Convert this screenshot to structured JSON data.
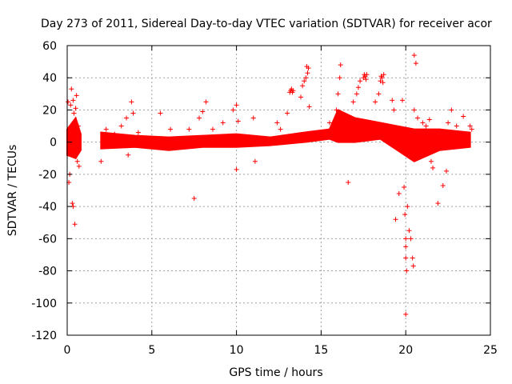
{
  "chart_data": {
    "type": "scatter",
    "title": "Day 273 of 2011, Sidereal Day-to-day VTEC variation (SDTVAR) for receiver acor",
    "xlabel": "GPS time / hours",
    "ylabel": "SDTVAR / TECUs",
    "xlim": [
      0,
      25
    ],
    "ylim": [
      -120,
      60
    ],
    "xticks": [
      0,
      5,
      10,
      15,
      20,
      25
    ],
    "yticks": [
      60,
      40,
      20,
      0,
      -20,
      -40,
      -60,
      -80,
      -100,
      -120
    ],
    "grid": true,
    "marker": "+",
    "series_color": "#ff0000",
    "series": [
      {
        "name": "SDTVAR",
        "band_description": "dense band of samples around zero",
        "band": [
          {
            "x": 0.0,
            "low": -8,
            "high": 8
          },
          {
            "x": 0.5,
            "low": -10,
            "high": 15
          },
          {
            "x": 0.8,
            "low": -5,
            "high": 5
          },
          {
            "x": 2.0,
            "low": -4,
            "high": 6
          },
          {
            "x": 4.0,
            "low": -3,
            "high": 4
          },
          {
            "x": 6.0,
            "low": -5,
            "high": 3
          },
          {
            "x": 8.0,
            "low": -3,
            "high": 4
          },
          {
            "x": 10.0,
            "low": -3,
            "high": 5
          },
          {
            "x": 12.0,
            "low": -2,
            "high": 3
          },
          {
            "x": 14.0,
            "low": 0,
            "high": 6
          },
          {
            "x": 15.5,
            "low": 2,
            "high": 8
          },
          {
            "x": 16.0,
            "low": 0,
            "high": 20
          },
          {
            "x": 17.0,
            "low": 0,
            "high": 15
          },
          {
            "x": 18.5,
            "low": 2,
            "high": 12
          },
          {
            "x": 19.5,
            "low": -5,
            "high": 10
          },
          {
            "x": 20.5,
            "low": -12,
            "high": 8
          },
          {
            "x": 22.0,
            "low": -5,
            "high": 8
          },
          {
            "x": 23.8,
            "low": -3,
            "high": 6
          }
        ],
        "points": [
          [
            0.05,
            25
          ],
          [
            0.1,
            -25
          ],
          [
            0.2,
            23
          ],
          [
            0.25,
            33
          ],
          [
            0.3,
            -38
          ],
          [
            0.35,
            26
          ],
          [
            0.4,
            18
          ],
          [
            0.45,
            -51
          ],
          [
            0.5,
            21
          ],
          [
            0.55,
            29
          ],
          [
            0.6,
            -12
          ],
          [
            0.65,
            10
          ],
          [
            0.7,
            -15
          ],
          [
            0.15,
            -20
          ],
          [
            0.35,
            -40
          ],
          [
            2.0,
            -12
          ],
          [
            2.3,
            8
          ],
          [
            2.8,
            5
          ],
          [
            3.2,
            10
          ],
          [
            3.5,
            15
          ],
          [
            3.6,
            -8
          ],
          [
            3.8,
            25
          ],
          [
            3.9,
            18
          ],
          [
            4.2,
            6
          ],
          [
            5.5,
            18
          ],
          [
            6.1,
            8
          ],
          [
            7.2,
            8
          ],
          [
            7.5,
            -35
          ],
          [
            7.8,
            15
          ],
          [
            8.0,
            19
          ],
          [
            8.2,
            25
          ],
          [
            8.6,
            8
          ],
          [
            9.2,
            12
          ],
          [
            9.8,
            20
          ],
          [
            10.0,
            23
          ],
          [
            10.1,
            13
          ],
          [
            10.0,
            -17
          ],
          [
            11.0,
            15
          ],
          [
            11.1,
            -12
          ],
          [
            12.4,
            12
          ],
          [
            12.6,
            8
          ],
          [
            13.0,
            18
          ],
          [
            13.15,
            31
          ],
          [
            13.2,
            32
          ],
          [
            13.25,
            33
          ],
          [
            13.3,
            31
          ],
          [
            13.35,
            32
          ],
          [
            13.8,
            28
          ],
          [
            13.9,
            35
          ],
          [
            14.0,
            38
          ],
          [
            14.1,
            40
          ],
          [
            14.2,
            43
          ],
          [
            14.25,
            46
          ],
          [
            14.15,
            47
          ],
          [
            14.3,
            22
          ],
          [
            15.5,
            12
          ],
          [
            15.9,
            20
          ],
          [
            16.0,
            30
          ],
          [
            16.1,
            40
          ],
          [
            16.15,
            48
          ],
          [
            16.6,
            -25
          ],
          [
            16.9,
            25
          ],
          [
            17.1,
            30
          ],
          [
            17.2,
            34
          ],
          [
            17.3,
            38
          ],
          [
            17.5,
            40
          ],
          [
            17.55,
            42
          ],
          [
            17.6,
            41
          ],
          [
            17.65,
            39
          ],
          [
            17.7,
            42
          ],
          [
            18.2,
            25
          ],
          [
            18.4,
            30
          ],
          [
            18.5,
            38
          ],
          [
            18.55,
            41
          ],
          [
            18.6,
            40
          ],
          [
            18.65,
            37
          ],
          [
            18.7,
            42
          ],
          [
            19.2,
            26
          ],
          [
            19.3,
            20
          ],
          [
            19.4,
            -48
          ],
          [
            19.6,
            -32
          ],
          [
            19.8,
            26
          ],
          [
            19.9,
            -28
          ],
          [
            19.95,
            -45
          ],
          [
            20.0,
            -60
          ],
          [
            20.0,
            -65
          ],
          [
            20.0,
            -72
          ],
          [
            20.05,
            -80
          ],
          [
            20.0,
            -107
          ],
          [
            20.1,
            -40
          ],
          [
            20.2,
            -55
          ],
          [
            20.3,
            -60
          ],
          [
            20.4,
            -72
          ],
          [
            20.45,
            -77
          ],
          [
            20.5,
            54
          ],
          [
            20.6,
            49
          ],
          [
            20.5,
            20
          ],
          [
            20.7,
            15
          ],
          [
            21.0,
            12
          ],
          [
            21.2,
            10
          ],
          [
            21.4,
            14
          ],
          [
            21.5,
            -12
          ],
          [
            21.6,
            -16
          ],
          [
            21.9,
            -38
          ],
          [
            22.2,
            -27
          ],
          [
            22.4,
            -18
          ],
          [
            22.5,
            12
          ],
          [
            22.7,
            20
          ],
          [
            23.0,
            10
          ],
          [
            23.4,
            16
          ],
          [
            23.8,
            10
          ],
          [
            23.9,
            8
          ]
        ]
      }
    ]
  }
}
